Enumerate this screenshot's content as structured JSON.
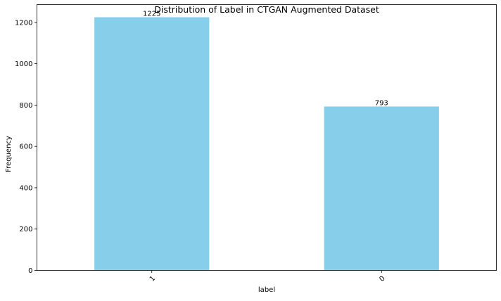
{
  "chart_data": {
    "type": "bar",
    "title": "Distribution of Label in CTGAN Augmented Dataset",
    "xlabel": "label",
    "ylabel": "Frequency",
    "categories": [
      "1",
      "0"
    ],
    "values": [
      1225,
      793
    ],
    "data_labels": [
      "1225",
      "793"
    ],
    "ylim": [
      0,
      1286.25
    ],
    "yticks": [
      0,
      200,
      400,
      600,
      800,
      1000,
      1200
    ],
    "ytick_labels": [
      "0",
      "200",
      "400",
      "600",
      "800",
      "1000",
      "1200"
    ],
    "xtick_rotation": "45 degrees",
    "bar_color": "#87ceeb",
    "grid": false,
    "legend": "none"
  }
}
